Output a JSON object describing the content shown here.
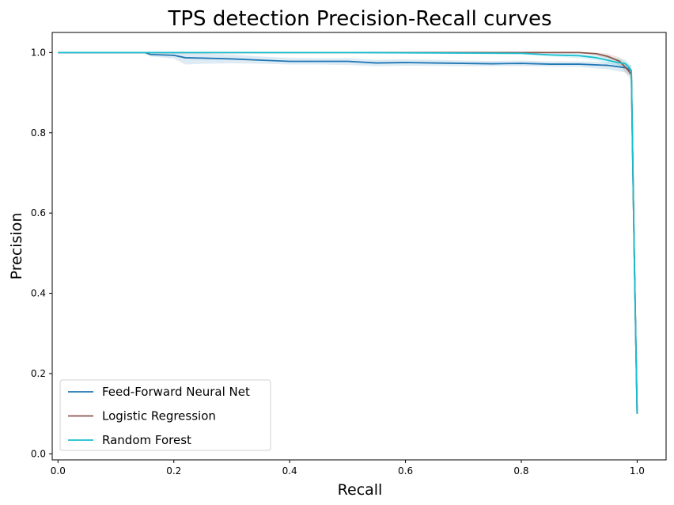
{
  "chart_data": {
    "type": "line",
    "title": "TPS detection Precision-Recall curves",
    "xlabel": "Recall",
    "ylabel": "Precision",
    "xlim": [
      -0.01,
      1.05
    ],
    "ylim": [
      -0.015,
      1.05
    ],
    "x_ticks": [
      0.0,
      0.2,
      0.4,
      0.6,
      0.8,
      1.0
    ],
    "x_tick_labels": [
      "0.0",
      "0.2",
      "0.4",
      "0.6",
      "0.8",
      "1.0"
    ],
    "y_ticks": [
      0.0,
      0.2,
      0.4,
      0.6,
      0.8,
      1.0
    ],
    "y_tick_labels": [
      "0.0",
      "0.2",
      "0.4",
      "0.6",
      "0.8",
      "1.0"
    ],
    "grid": false,
    "legend_position": "lower-left",
    "series": [
      {
        "name": "Feed-Forward Neural Net",
        "color": "#1f77b4",
        "band_color": "#1f77b4",
        "x": [
          0.0,
          0.15,
          0.16,
          0.2,
          0.22,
          0.25,
          0.3,
          0.35,
          0.4,
          0.45,
          0.5,
          0.55,
          0.6,
          0.65,
          0.7,
          0.75,
          0.8,
          0.85,
          0.9,
          0.95,
          0.98,
          0.99,
          0.995,
          1.0
        ],
        "y": [
          1.0,
          1.0,
          0.995,
          0.993,
          0.987,
          0.986,
          0.984,
          0.981,
          0.978,
          0.978,
          0.978,
          0.974,
          0.975,
          0.974,
          0.973,
          0.972,
          0.973,
          0.971,
          0.971,
          0.968,
          0.962,
          0.955,
          0.5,
          0.1
        ],
        "lower": [
          1.0,
          1.0,
          0.99,
          0.985,
          0.97,
          0.972,
          0.973,
          0.972,
          0.97,
          0.97,
          0.969,
          0.966,
          0.967,
          0.967,
          0.966,
          0.966,
          0.966,
          0.965,
          0.964,
          0.958,
          0.95,
          0.94,
          0.48,
          0.1
        ],
        "upper": [
          1.0,
          1.0,
          1.0,
          1.0,
          1.0,
          0.998,
          0.995,
          0.99,
          0.987,
          0.986,
          0.986,
          0.982,
          0.983,
          0.982,
          0.98,
          0.979,
          0.98,
          0.978,
          0.978,
          0.976,
          0.972,
          0.968,
          0.52,
          0.1
        ]
      },
      {
        "name": "Logistic Regression",
        "color": "#8c564b",
        "band_color": "#8c564b",
        "x": [
          0.0,
          0.5,
          0.9,
          0.93,
          0.95,
          0.97,
          0.985,
          0.99,
          0.995,
          1.0
        ],
        "y": [
          1.0,
          1.0,
          1.0,
          0.997,
          0.99,
          0.978,
          0.955,
          0.945,
          0.5,
          0.1
        ],
        "lower": [
          1.0,
          1.0,
          0.998,
          0.993,
          0.983,
          0.968,
          0.94,
          0.93,
          0.48,
          0.1
        ],
        "upper": [
          1.0,
          1.0,
          1.0,
          1.0,
          0.997,
          0.988,
          0.97,
          0.96,
          0.52,
          0.1
        ]
      },
      {
        "name": "Random Forest",
        "color": "#17becf",
        "band_color": "#17becf",
        "x": [
          0.0,
          0.5,
          0.8,
          0.85,
          0.9,
          0.93,
          0.96,
          0.98,
          0.99,
          0.995,
          1.0
        ],
        "y": [
          1.0,
          1.0,
          0.998,
          0.994,
          0.992,
          0.987,
          0.977,
          0.972,
          0.955,
          0.5,
          0.1
        ],
        "lower": [
          1.0,
          1.0,
          0.995,
          0.99,
          0.986,
          0.98,
          0.968,
          0.96,
          0.94,
          0.48,
          0.1
        ],
        "upper": [
          1.0,
          1.0,
          1.0,
          0.998,
          0.997,
          0.993,
          0.986,
          0.983,
          0.968,
          0.52,
          0.1
        ]
      }
    ]
  }
}
